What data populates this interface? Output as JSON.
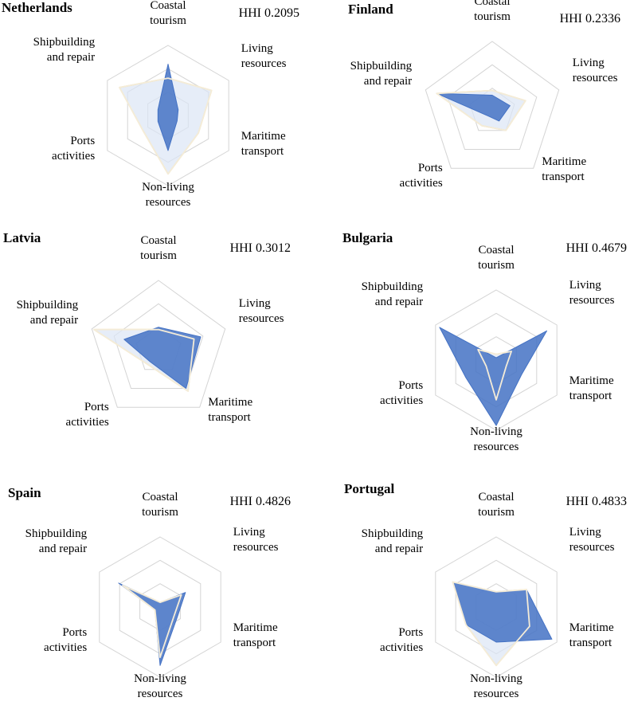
{
  "axes": [
    "Coastal tourism",
    "Living resources",
    "Maritime transport",
    "Non-living resources",
    "Ports activities",
    "Shipbuilding and repair"
  ],
  "colors": {
    "country": "#4472c4",
    "reference": "#f2d79a",
    "reference_fill": "#dbe5f5",
    "grid": "#d4d4d4"
  },
  "chart_data": [
    {
      "type": "radar",
      "title": "Netherlands",
      "hhi_label": "HHI 0.2095",
      "axis_labels": [
        [
          "Coastal",
          "tourism"
        ],
        [
          "Living",
          "resources"
        ],
        [
          "Maritime",
          "transport"
        ],
        [
          "Non-living",
          "resources"
        ],
        [
          "Ports",
          "activities"
        ],
        [
          "Shipbuilding",
          "and repair"
        ]
      ],
      "rmax": 0.6,
      "series": [
        {
          "values": [
            0.44,
            0.1,
            0.09,
            0.3,
            0.1,
            0.1
          ]
        },
        {
          "values": [
            0.32,
            0.43,
            0.3,
            0.5,
            0.25,
            0.48
          ]
        }
      ]
    },
    {
      "type": "radar",
      "title": "Finland",
      "hhi_label": "HHI 0.2336",
      "axis_labels": [
        [
          "Coastal",
          "tourism"
        ],
        [
          "Living",
          "resources"
        ],
        [
          "Maritime",
          "transport"
        ],
        [
          "Ports",
          "activities"
        ],
        [
          "Shipbuilding",
          "and repair"
        ]
      ],
      "rmax": 0.6,
      "series": [
        {
          "values": [
            0.14,
            0.16,
            0.1,
            0.05,
            0.5
          ]
        },
        {
          "values": [
            0.18,
            0.3,
            0.2,
            0.15,
            0.5
          ]
        }
      ]
    },
    {
      "type": "radar",
      "title": "Latvia",
      "hhi_label": "HHI 0.3012",
      "axis_labels": [
        [
          "Coastal",
          "tourism"
        ],
        [
          "Living",
          "resources"
        ],
        [
          "Maritime",
          "transport"
        ],
        [
          "Ports",
          "activities"
        ],
        [
          "Shipbuilding",
          "and repair"
        ]
      ],
      "rmax": 0.6,
      "series": [
        {
          "values": [
            0.2,
            0.38,
            0.4,
            0.12,
            0.31
          ]
        },
        {
          "values": [
            0.18,
            0.32,
            0.43,
            0.15,
            0.58
          ]
        }
      ]
    },
    {
      "type": "radar",
      "title": "Bulgaria",
      "hhi_label": "HHI 0.4679",
      "axis_labels": [
        [
          "Coastal",
          "tourism"
        ],
        [
          "Living",
          "resources"
        ],
        [
          "Maritime",
          "transport"
        ],
        [
          "Non-living",
          "resources"
        ],
        [
          "Ports",
          "activities"
        ],
        [
          "Shipbuilding",
          "and repair"
        ]
      ],
      "rmax": 0.6,
      "series": [
        {
          "values": [
            0.02,
            0.5,
            0.25,
            0.56,
            0.3,
            0.56
          ]
        },
        {
          "values": [
            0.05,
            0.15,
            0.1,
            0.34,
            0.1,
            0.18
          ]
        }
      ]
    },
    {
      "type": "radar",
      "title": "Spain",
      "hhi_label": "HHI 0.4826",
      "axis_labels": [
        [
          "Coastal",
          "tourism"
        ],
        [
          "Living",
          "resources"
        ],
        [
          "Maritime",
          "transport"
        ],
        [
          "Non-living",
          "resources"
        ],
        [
          "Ports",
          "activities"
        ],
        [
          "Shipbuilding",
          "and repair"
        ]
      ],
      "rmax": 0.6,
      "series": [
        {
          "values": [
            0.04,
            0.25,
            0.17,
            0.5,
            0.05,
            0.41
          ]
        },
        {
          "values": [
            0.04,
            0.21,
            0.14,
            0.43,
            0.05,
            0.37
          ]
        }
      ]
    },
    {
      "type": "radar",
      "title": "Portugal",
      "hhi_label": "HHI 0.4833",
      "axis_labels": [
        [
          "Coastal",
          "tourism"
        ],
        [
          "Living",
          "resources"
        ],
        [
          "Maritime",
          "transport"
        ],
        [
          "Non-living",
          "resources"
        ],
        [
          "Ports",
          "activities"
        ],
        [
          "Shipbuilding",
          "and repair"
        ]
      ],
      "rmax": 0.6,
      "series": [
        {
          "values": [
            0.13,
            0.3,
            0.55,
            0.3,
            0.3,
            0.43
          ]
        },
        {
          "values": [
            0.13,
            0.3,
            0.33,
            0.5,
            0.3,
            0.43
          ]
        }
      ]
    }
  ]
}
